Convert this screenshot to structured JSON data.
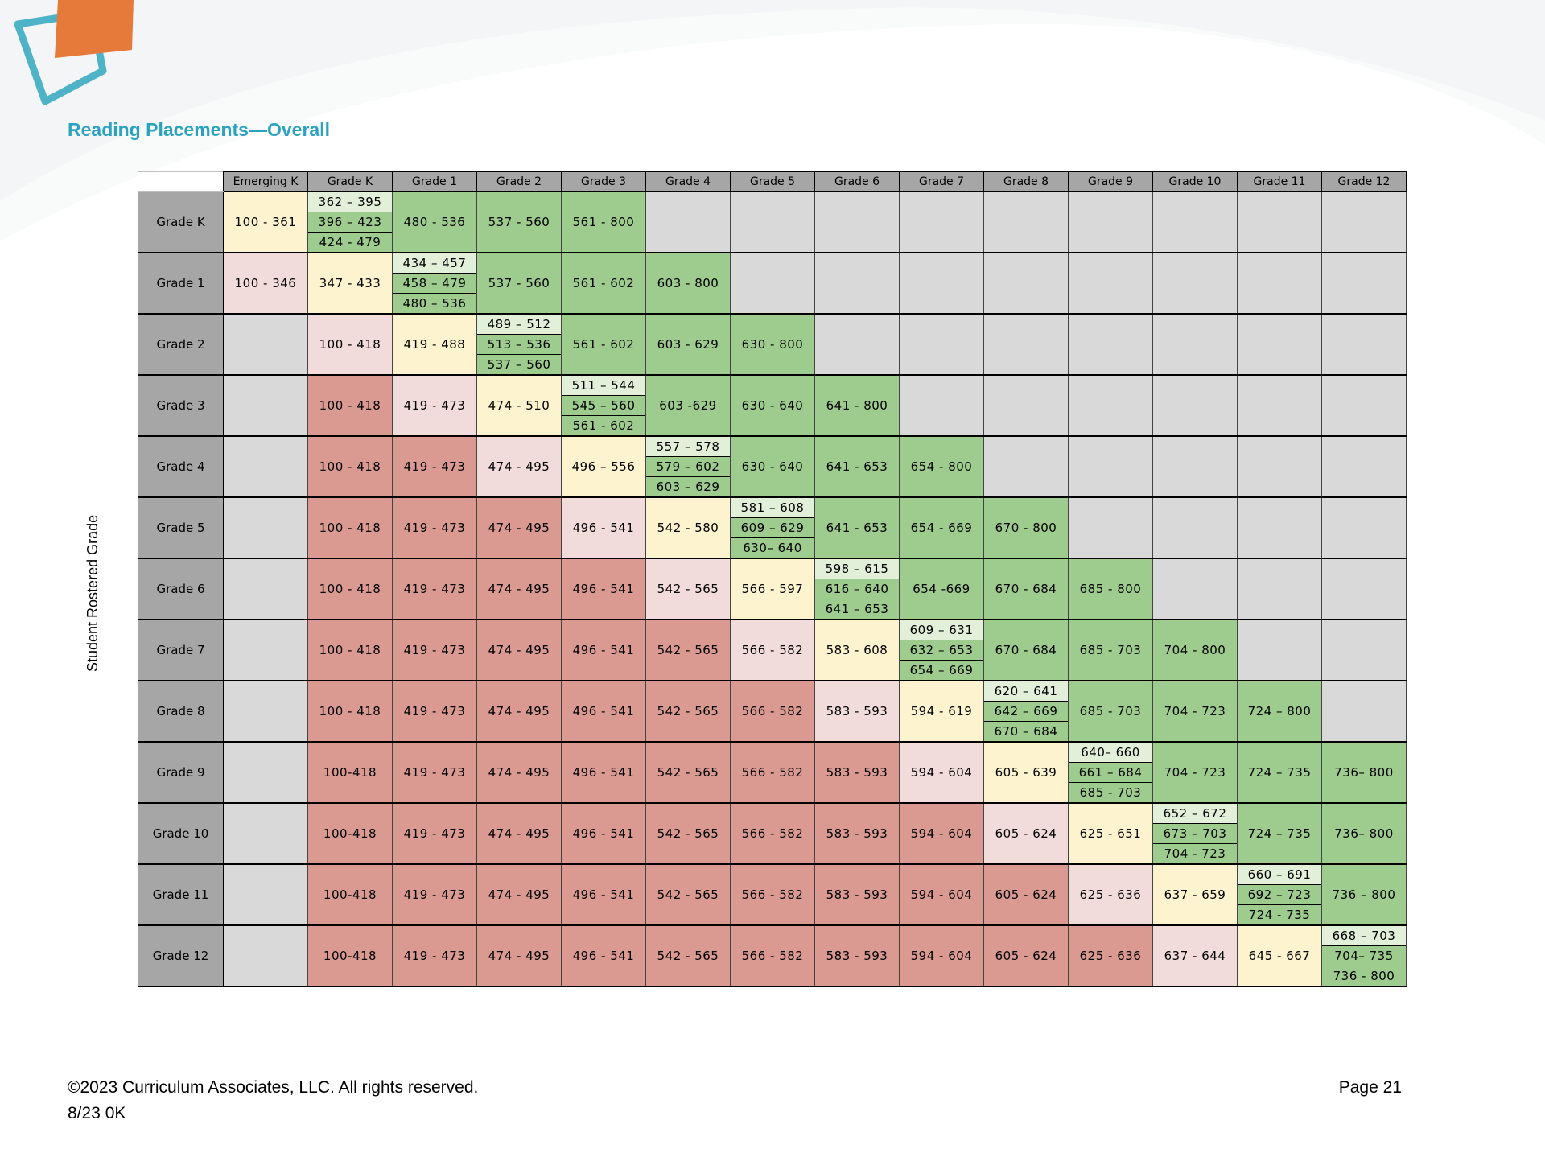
{
  "title": "Reading Placements—Overall",
  "side_label": "Student Rostered Grade",
  "columns": [
    "Emerging K",
    "Grade K",
    "Grade 1",
    "Grade 2",
    "Grade 3",
    "Grade 4",
    "Grade 5",
    "Grade 6",
    "Grade 7",
    "Grade 8",
    "Grade 9",
    "Grade 10",
    "Grade 11",
    "Grade 12"
  ],
  "rows": [
    {
      "label": "Grade K",
      "cells": [
        {
          "s": "yellow",
          "t": "100 - 361"
        },
        {
          "s": "stack",
          "v": [
            "362 – 395",
            "396 – 423",
            "424 - 479"
          ]
        },
        {
          "s": "green",
          "t": "480 - 536"
        },
        {
          "s": "green",
          "t": "537 - 560"
        },
        {
          "s": "green",
          "t": "561 - 800"
        },
        {
          "s": "na"
        },
        {
          "s": "na"
        },
        {
          "s": "na"
        },
        {
          "s": "na"
        },
        {
          "s": "na"
        },
        {
          "s": "na"
        },
        {
          "s": "na"
        },
        {
          "s": "na"
        },
        {
          "s": "na"
        }
      ]
    },
    {
      "label": "Grade 1",
      "cells": [
        {
          "s": "pink",
          "t": "100 - 346"
        },
        {
          "s": "yellow",
          "t": "347 - 433"
        },
        {
          "s": "stack",
          "v": [
            "434 – 457",
            "458 – 479",
            "480 – 536"
          ]
        },
        {
          "s": "green",
          "t": "537 - 560"
        },
        {
          "s": "green",
          "t": "561 - 602"
        },
        {
          "s": "green",
          "t": "603 - 800"
        },
        {
          "s": "na"
        },
        {
          "s": "na"
        },
        {
          "s": "na"
        },
        {
          "s": "na"
        },
        {
          "s": "na"
        },
        {
          "s": "na"
        },
        {
          "s": "na"
        },
        {
          "s": "na"
        }
      ]
    },
    {
      "label": "Grade 2",
      "cells": [
        {
          "s": "na"
        },
        {
          "s": "pink",
          "t": "100 - 418"
        },
        {
          "s": "yellow",
          "t": "419 - 488"
        },
        {
          "s": "stack",
          "v": [
            "489 – 512",
            "513 – 536",
            "537 – 560"
          ]
        },
        {
          "s": "green",
          "t": "561 - 602"
        },
        {
          "s": "green",
          "t": "603 - 629"
        },
        {
          "s": "green",
          "t": "630 - 800"
        },
        {
          "s": "na"
        },
        {
          "s": "na"
        },
        {
          "s": "na"
        },
        {
          "s": "na"
        },
        {
          "s": "na"
        },
        {
          "s": "na"
        },
        {
          "s": "na"
        }
      ]
    },
    {
      "label": "Grade 3",
      "cells": [
        {
          "s": "na"
        },
        {
          "s": "red",
          "t": "100 - 418"
        },
        {
          "s": "pink",
          "t": "419 - 473"
        },
        {
          "s": "yellow",
          "t": "474 - 510"
        },
        {
          "s": "stack",
          "v": [
            "511 – 544",
            "545 – 560",
            "561 - 602"
          ]
        },
        {
          "s": "green",
          "t": "603 -629"
        },
        {
          "s": "green",
          "t": "630 - 640"
        },
        {
          "s": "green",
          "t": "641 - 800"
        },
        {
          "s": "na"
        },
        {
          "s": "na"
        },
        {
          "s": "na"
        },
        {
          "s": "na"
        },
        {
          "s": "na"
        },
        {
          "s": "na"
        }
      ]
    },
    {
      "label": "Grade 4",
      "cells": [
        {
          "s": "na"
        },
        {
          "s": "red",
          "t": "100 - 418"
        },
        {
          "s": "red",
          "t": "419 - 473"
        },
        {
          "s": "pink",
          "t": "474 - 495"
        },
        {
          "s": "yellow",
          "t": "496 – 556"
        },
        {
          "s": "stack",
          "v": [
            "557 – 578",
            "579 – 602",
            "603 – 629"
          ]
        },
        {
          "s": "green",
          "t": "630 - 640"
        },
        {
          "s": "green",
          "t": "641 - 653"
        },
        {
          "s": "green",
          "t": "654 - 800"
        },
        {
          "s": "na"
        },
        {
          "s": "na"
        },
        {
          "s": "na"
        },
        {
          "s": "na"
        },
        {
          "s": "na"
        }
      ]
    },
    {
      "label": "Grade 5",
      "cells": [
        {
          "s": "na"
        },
        {
          "s": "red",
          "t": "100 - 418"
        },
        {
          "s": "red",
          "t": "419 - 473"
        },
        {
          "s": "red",
          "t": "474 - 495"
        },
        {
          "s": "pink",
          "t": "496 - 541"
        },
        {
          "s": "yellow",
          "t": "542 - 580"
        },
        {
          "s": "stack",
          "v": [
            "581 – 608",
            "609 – 629",
            "630– 640"
          ]
        },
        {
          "s": "green",
          "t": "641 - 653"
        },
        {
          "s": "green",
          "t": "654 - 669"
        },
        {
          "s": "green",
          "t": "670 - 800"
        },
        {
          "s": "na"
        },
        {
          "s": "na"
        },
        {
          "s": "na"
        },
        {
          "s": "na"
        }
      ]
    },
    {
      "label": "Grade 6",
      "cells": [
        {
          "s": "na"
        },
        {
          "s": "red",
          "t": "100 - 418"
        },
        {
          "s": "red",
          "t": "419 - 473"
        },
        {
          "s": "red",
          "t": "474 - 495"
        },
        {
          "s": "red",
          "t": "496 - 541"
        },
        {
          "s": "pink",
          "t": "542 - 565"
        },
        {
          "s": "yellow",
          "t": "566 - 597"
        },
        {
          "s": "stack",
          "v": [
            "598 – 615",
            "616 – 640",
            "641 – 653"
          ]
        },
        {
          "s": "green",
          "t": "654 -669"
        },
        {
          "s": "green",
          "t": "670 - 684"
        },
        {
          "s": "green",
          "t": "685 - 800"
        },
        {
          "s": "na"
        },
        {
          "s": "na"
        },
        {
          "s": "na"
        }
      ]
    },
    {
      "label": "Grade 7",
      "cells": [
        {
          "s": "na"
        },
        {
          "s": "red",
          "t": "100 - 418"
        },
        {
          "s": "red",
          "t": "419 - 473"
        },
        {
          "s": "red",
          "t": "474 - 495"
        },
        {
          "s": "red",
          "t": "496 - 541"
        },
        {
          "s": "red",
          "t": "542 - 565"
        },
        {
          "s": "pink",
          "t": "566 - 582"
        },
        {
          "s": "yellow",
          "t": "583 - 608"
        },
        {
          "s": "stack",
          "v": [
            "609 – 631",
            "632 – 653",
            "654 – 669"
          ]
        },
        {
          "s": "green",
          "t": "670 - 684"
        },
        {
          "s": "green",
          "t": "685 - 703"
        },
        {
          "s": "green",
          "t": "704 - 800"
        },
        {
          "s": "na"
        },
        {
          "s": "na"
        }
      ]
    },
    {
      "label": "Grade 8",
      "cells": [
        {
          "s": "na"
        },
        {
          "s": "red",
          "t": "100 - 418"
        },
        {
          "s": "red",
          "t": "419 - 473"
        },
        {
          "s": "red",
          "t": "474 - 495"
        },
        {
          "s": "red",
          "t": "496 - 541"
        },
        {
          "s": "red",
          "t": "542 - 565"
        },
        {
          "s": "red",
          "t": "566 - 582"
        },
        {
          "s": "pink",
          "t": "583 - 593"
        },
        {
          "s": "yellow",
          "t": "594 - 619"
        },
        {
          "s": "stack",
          "v": [
            "620 – 641",
            "642 – 669",
            "670 – 684"
          ]
        },
        {
          "s": "green",
          "t": "685 - 703"
        },
        {
          "s": "green",
          "t": "704 - 723"
        },
        {
          "s": "green",
          "t": "724 – 800"
        },
        {
          "s": "na"
        }
      ]
    },
    {
      "label": "Grade 9",
      "cells": [
        {
          "s": "na"
        },
        {
          "s": "red",
          "t": "100-418"
        },
        {
          "s": "red",
          "t": "419 - 473"
        },
        {
          "s": "red",
          "t": "474 - 495"
        },
        {
          "s": "red",
          "t": "496 - 541"
        },
        {
          "s": "red",
          "t": "542 - 565"
        },
        {
          "s": "red",
          "t": "566 - 582"
        },
        {
          "s": "red",
          "t": "583 - 593"
        },
        {
          "s": "pink",
          "t": "594 - 604"
        },
        {
          "s": "yellow",
          "t": "605 - 639"
        },
        {
          "s": "stack",
          "v": [
            "640– 660",
            "661 – 684",
            "685 - 703"
          ]
        },
        {
          "s": "green",
          "t": "704 - 723"
        },
        {
          "s": "green",
          "t": "724 – 735"
        },
        {
          "s": "green",
          "t": "736– 800"
        }
      ]
    },
    {
      "label": "Grade 10",
      "cells": [
        {
          "s": "na"
        },
        {
          "s": "red",
          "t": "100-418"
        },
        {
          "s": "red",
          "t": "419 - 473"
        },
        {
          "s": "red",
          "t": "474 - 495"
        },
        {
          "s": "red",
          "t": "496 - 541"
        },
        {
          "s": "red",
          "t": "542 - 565"
        },
        {
          "s": "red",
          "t": "566 - 582"
        },
        {
          "s": "red",
          "t": "583 - 593"
        },
        {
          "s": "red",
          "t": "594 - 604"
        },
        {
          "s": "pink",
          "t": "605 - 624"
        },
        {
          "s": "yellow",
          "t": "625 - 651"
        },
        {
          "s": "stack",
          "v": [
            "652 – 672",
            "673 – 703",
            "704 - 723"
          ]
        },
        {
          "s": "green",
          "t": "724 – 735"
        },
        {
          "s": "green",
          "t": "736– 800"
        }
      ]
    },
    {
      "label": "Grade 11",
      "cells": [
        {
          "s": "na"
        },
        {
          "s": "red",
          "t": "100-418"
        },
        {
          "s": "red",
          "t": "419 - 473"
        },
        {
          "s": "red",
          "t": "474 - 495"
        },
        {
          "s": "red",
          "t": "496 - 541"
        },
        {
          "s": "red",
          "t": "542 - 565"
        },
        {
          "s": "red",
          "t": "566 - 582"
        },
        {
          "s": "red",
          "t": "583 - 593"
        },
        {
          "s": "red",
          "t": "594 - 604"
        },
        {
          "s": "red",
          "t": "605 - 624"
        },
        {
          "s": "pink",
          "t": "625 - 636"
        },
        {
          "s": "yellow",
          "t": "637 - 659"
        },
        {
          "s": "stack",
          "v": [
            "660 – 691",
            "692 – 723",
            "724 - 735"
          ]
        },
        {
          "s": "green",
          "t": "736 – 800"
        }
      ]
    },
    {
      "label": "Grade 12",
      "cells": [
        {
          "s": "na"
        },
        {
          "s": "red",
          "t": "100-418"
        },
        {
          "s": "red",
          "t": "419 - 473"
        },
        {
          "s": "red",
          "t": "474 - 495"
        },
        {
          "s": "red",
          "t": "496 - 541"
        },
        {
          "s": "red",
          "t": "542 - 565"
        },
        {
          "s": "red",
          "t": "566 - 582"
        },
        {
          "s": "red",
          "t": "583 - 593"
        },
        {
          "s": "red",
          "t": "594 - 604"
        },
        {
          "s": "red",
          "t": "605 - 624"
        },
        {
          "s": "red",
          "t": "625 - 636"
        },
        {
          "s": "pink",
          "t": "637 - 644"
        },
        {
          "s": "yellow",
          "t": "645 - 667"
        },
        {
          "s": "stack",
          "v": [
            "668 – 703",
            "704– 735",
            "736 - 800"
          ]
        }
      ]
    }
  ],
  "footer": {
    "copyright": "©2023 Curriculum Associates, LLC. All rights reserved.",
    "code": "8/23 0K",
    "page": "Page 21"
  },
  "colors": {
    "title": "#2ba2bf",
    "logo_orange": "#e57a3a",
    "logo_teal": "#4fb3c8",
    "na": "#d9d9d9",
    "red": "#da9a92",
    "pink": "#f2dcdb",
    "yellow": "#fdf4cf",
    "green": "#9ecb8e",
    "stack_top": "#e2efd9",
    "header_gray": "#a6a6a6"
  }
}
